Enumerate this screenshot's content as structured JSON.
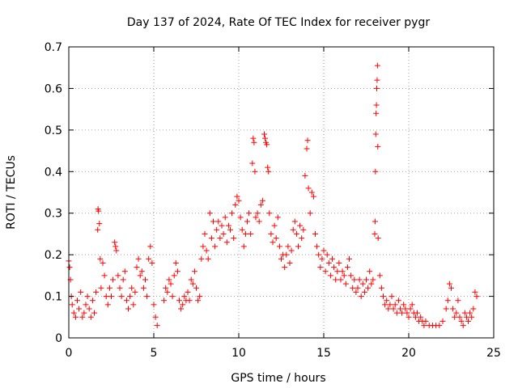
{
  "chart_data": {
    "type": "scatter",
    "title": "Day 137 of 2024, Rate Of TEC Index for receiver pygr",
    "xlabel": "GPS time / hours",
    "ylabel": "ROTI / TECUs",
    "xlim": [
      0,
      25
    ],
    "ylim": [
      0,
      0.7
    ],
    "xticks": [
      0,
      5,
      10,
      15,
      20,
      25
    ],
    "yticks": [
      0,
      0.1,
      0.2,
      0.3,
      0.4,
      0.5,
      0.6,
      0.7
    ],
    "xtick_labels": [
      "0",
      "5",
      "10",
      "15",
      "20",
      "25"
    ],
    "ytick_labels": [
      "0",
      "0.1",
      "0.2",
      "0.3",
      "0.4",
      "0.5",
      "0.6",
      "0.7"
    ],
    "grid": true,
    "marker": "plus",
    "color": "#ff0000",
    "series": [
      {
        "points": [
          [
            0.0,
            0.185
          ],
          [
            0.05,
            0.17
          ],
          [
            0.1,
            0.14
          ],
          [
            0.15,
            0.1
          ],
          [
            0.2,
            0.08
          ],
          [
            0.3,
            0.06
          ],
          [
            0.4,
            0.05
          ],
          [
            0.5,
            0.09
          ],
          [
            0.6,
            0.07
          ],
          [
            0.7,
            0.11
          ],
          [
            0.8,
            0.05
          ],
          [
            0.9,
            0.06
          ],
          [
            1.0,
            0.08
          ],
          [
            1.1,
            0.1
          ],
          [
            1.2,
            0.07
          ],
          [
            1.3,
            0.05
          ],
          [
            1.4,
            0.09
          ],
          [
            1.5,
            0.06
          ],
          [
            1.6,
            0.11
          ],
          [
            1.7,
            0.26
          ],
          [
            1.72,
            0.31
          ],
          [
            1.75,
            0.305
          ],
          [
            1.8,
            0.275
          ],
          [
            1.85,
            0.19
          ],
          [
            1.9,
            0.12
          ],
          [
            2.0,
            0.18
          ],
          [
            2.1,
            0.15
          ],
          [
            2.2,
            0.1
          ],
          [
            2.3,
            0.08
          ],
          [
            2.4,
            0.12
          ],
          [
            2.5,
            0.1
          ],
          [
            2.6,
            0.14
          ],
          [
            2.7,
            0.23
          ],
          [
            2.75,
            0.22
          ],
          [
            2.8,
            0.21
          ],
          [
            2.9,
            0.15
          ],
          [
            3.0,
            0.12
          ],
          [
            3.1,
            0.1
          ],
          [
            3.2,
            0.14
          ],
          [
            3.3,
            0.16
          ],
          [
            3.4,
            0.09
          ],
          [
            3.5,
            0.07
          ],
          [
            3.6,
            0.1
          ],
          [
            3.7,
            0.12
          ],
          [
            3.8,
            0.08
          ],
          [
            3.9,
            0.11
          ],
          [
            4.0,
            0.17
          ],
          [
            4.1,
            0.19
          ],
          [
            4.2,
            0.15
          ],
          [
            4.3,
            0.16
          ],
          [
            4.4,
            0.12
          ],
          [
            4.5,
            0.14
          ],
          [
            4.6,
            0.1
          ],
          [
            4.7,
            0.19
          ],
          [
            4.8,
            0.22
          ],
          [
            4.9,
            0.18
          ],
          [
            5.0,
            0.08
          ],
          [
            5.1,
            0.05
          ],
          [
            5.2,
            0.03
          ],
          [
            5.6,
            0.09
          ],
          [
            5.7,
            0.12
          ],
          [
            5.8,
            0.11
          ],
          [
            5.9,
            0.14
          ],
          [
            6.0,
            0.13
          ],
          [
            6.1,
            0.1
          ],
          [
            6.2,
            0.15
          ],
          [
            6.3,
            0.18
          ],
          [
            6.4,
            0.16
          ],
          [
            6.5,
            0.09
          ],
          [
            6.6,
            0.07
          ],
          [
            6.7,
            0.08
          ],
          [
            6.8,
            0.1
          ],
          [
            6.9,
            0.09
          ],
          [
            7.0,
            0.11
          ],
          [
            7.1,
            0.09
          ],
          [
            7.2,
            0.14
          ],
          [
            7.3,
            0.13
          ],
          [
            7.4,
            0.16
          ],
          [
            7.5,
            0.12
          ],
          [
            7.6,
            0.09
          ],
          [
            7.7,
            0.1
          ],
          [
            7.8,
            0.19
          ],
          [
            7.9,
            0.22
          ],
          [
            8.0,
            0.25
          ],
          [
            8.1,
            0.21
          ],
          [
            8.2,
            0.19
          ],
          [
            8.3,
            0.3
          ],
          [
            8.4,
            0.24
          ],
          [
            8.5,
            0.28
          ],
          [
            8.6,
            0.22
          ],
          [
            8.7,
            0.26
          ],
          [
            8.8,
            0.28
          ],
          [
            8.9,
            0.24
          ],
          [
            9.0,
            0.27
          ],
          [
            9.1,
            0.25
          ],
          [
            9.2,
            0.29
          ],
          [
            9.3,
            0.23
          ],
          [
            9.4,
            0.27
          ],
          [
            9.5,
            0.26
          ],
          [
            9.6,
            0.3
          ],
          [
            9.7,
            0.24
          ],
          [
            9.8,
            0.32
          ],
          [
            9.9,
            0.34
          ],
          [
            10.0,
            0.33
          ],
          [
            10.1,
            0.29
          ],
          [
            10.2,
            0.26
          ],
          [
            10.3,
            0.22
          ],
          [
            10.4,
            0.25
          ],
          [
            10.5,
            0.28
          ],
          [
            10.6,
            0.3
          ],
          [
            10.7,
            0.25
          ],
          [
            10.8,
            0.42
          ],
          [
            10.85,
            0.48
          ],
          [
            10.9,
            0.47
          ],
          [
            10.95,
            0.4
          ],
          [
            11.0,
            0.29
          ],
          [
            11.1,
            0.3
          ],
          [
            11.2,
            0.28
          ],
          [
            11.3,
            0.32
          ],
          [
            11.4,
            0.33
          ],
          [
            11.5,
            0.49
          ],
          [
            11.55,
            0.48
          ],
          [
            11.6,
            0.47
          ],
          [
            11.65,
            0.465
          ],
          [
            11.7,
            0.41
          ],
          [
            11.75,
            0.4
          ],
          [
            11.8,
            0.3
          ],
          [
            11.9,
            0.25
          ],
          [
            12.0,
            0.23
          ],
          [
            12.1,
            0.27
          ],
          [
            12.2,
            0.24
          ],
          [
            12.3,
            0.29
          ],
          [
            12.4,
            0.22
          ],
          [
            12.5,
            0.19
          ],
          [
            12.6,
            0.2
          ],
          [
            12.7,
            0.17
          ],
          [
            12.8,
            0.2
          ],
          [
            12.9,
            0.22
          ],
          [
            13.0,
            0.18
          ],
          [
            13.1,
            0.21
          ],
          [
            13.2,
            0.26
          ],
          [
            13.3,
            0.28
          ],
          [
            13.4,
            0.25
          ],
          [
            13.5,
            0.22
          ],
          [
            13.6,
            0.27
          ],
          [
            13.7,
            0.24
          ],
          [
            13.8,
            0.26
          ],
          [
            13.9,
            0.39
          ],
          [
            14.0,
            0.455
          ],
          [
            14.05,
            0.475
          ],
          [
            14.1,
            0.36
          ],
          [
            14.2,
            0.3
          ],
          [
            14.3,
            0.35
          ],
          [
            14.4,
            0.34
          ],
          [
            14.5,
            0.25
          ],
          [
            14.6,
            0.22
          ],
          [
            14.7,
            0.2
          ],
          [
            14.8,
            0.17
          ],
          [
            14.9,
            0.19
          ],
          [
            15.0,
            0.21
          ],
          [
            15.1,
            0.16
          ],
          [
            15.2,
            0.2
          ],
          [
            15.3,
            0.18
          ],
          [
            15.4,
            0.15
          ],
          [
            15.5,
            0.19
          ],
          [
            15.6,
            0.17
          ],
          [
            15.7,
            0.14
          ],
          [
            15.8,
            0.16
          ],
          [
            15.9,
            0.18
          ],
          [
            16.0,
            0.14
          ],
          [
            16.1,
            0.16
          ],
          [
            16.2,
            0.15
          ],
          [
            16.3,
            0.13
          ],
          [
            16.4,
            0.17
          ],
          [
            16.5,
            0.19
          ],
          [
            16.6,
            0.15
          ],
          [
            16.7,
            0.12
          ],
          [
            16.8,
            0.14
          ],
          [
            16.9,
            0.11
          ],
          [
            17.0,
            0.12
          ],
          [
            17.1,
            0.14
          ],
          [
            17.2,
            0.1
          ],
          [
            17.3,
            0.13
          ],
          [
            17.4,
            0.11
          ],
          [
            17.5,
            0.14
          ],
          [
            17.6,
            0.12
          ],
          [
            17.7,
            0.16
          ],
          [
            17.8,
            0.13
          ],
          [
            17.9,
            0.14
          ],
          [
            18.0,
            0.25
          ],
          [
            18.02,
            0.28
          ],
          [
            18.04,
            0.4
          ],
          [
            18.06,
            0.49
          ],
          [
            18.08,
            0.54
          ],
          [
            18.1,
            0.56
          ],
          [
            18.12,
            0.6
          ],
          [
            18.14,
            0.62
          ],
          [
            18.16,
            0.655
          ],
          [
            18.18,
            0.46
          ],
          [
            18.2,
            0.24
          ],
          [
            18.3,
            0.15
          ],
          [
            18.4,
            0.12
          ],
          [
            18.5,
            0.1
          ],
          [
            18.6,
            0.08
          ],
          [
            18.7,
            0.09
          ],
          [
            18.8,
            0.07
          ],
          [
            18.9,
            0.08
          ],
          [
            19.0,
            0.1
          ],
          [
            19.1,
            0.07
          ],
          [
            19.2,
            0.08
          ],
          [
            19.3,
            0.06
          ],
          [
            19.4,
            0.09
          ],
          [
            19.5,
            0.07
          ],
          [
            19.6,
            0.06
          ],
          [
            19.7,
            0.08
          ],
          [
            19.8,
            0.07
          ],
          [
            19.9,
            0.06
          ],
          [
            20.0,
            0.05
          ],
          [
            20.1,
            0.07
          ],
          [
            20.2,
            0.08
          ],
          [
            20.3,
            0.06
          ],
          [
            20.4,
            0.05
          ],
          [
            20.5,
            0.06
          ],
          [
            20.6,
            0.04
          ],
          [
            20.7,
            0.05
          ],
          [
            20.8,
            0.04
          ],
          [
            20.9,
            0.03
          ],
          [
            21.0,
            0.04
          ],
          [
            21.2,
            0.03
          ],
          [
            21.4,
            0.03
          ],
          [
            21.6,
            0.03
          ],
          [
            21.8,
            0.03
          ],
          [
            22.0,
            0.04
          ],
          [
            22.2,
            0.07
          ],
          [
            22.3,
            0.09
          ],
          [
            22.4,
            0.13
          ],
          [
            22.5,
            0.12
          ],
          [
            22.6,
            0.07
          ],
          [
            22.7,
            0.05
          ],
          [
            22.8,
            0.06
          ],
          [
            22.9,
            0.09
          ],
          [
            23.0,
            0.05
          ],
          [
            23.1,
            0.04
          ],
          [
            23.2,
            0.03
          ],
          [
            23.3,
            0.06
          ],
          [
            23.4,
            0.05
          ],
          [
            23.5,
            0.04
          ],
          [
            23.6,
            0.06
          ],
          [
            23.7,
            0.05
          ],
          [
            23.8,
            0.07
          ],
          [
            23.9,
            0.11
          ],
          [
            24.0,
            0.1
          ]
        ]
      }
    ]
  }
}
